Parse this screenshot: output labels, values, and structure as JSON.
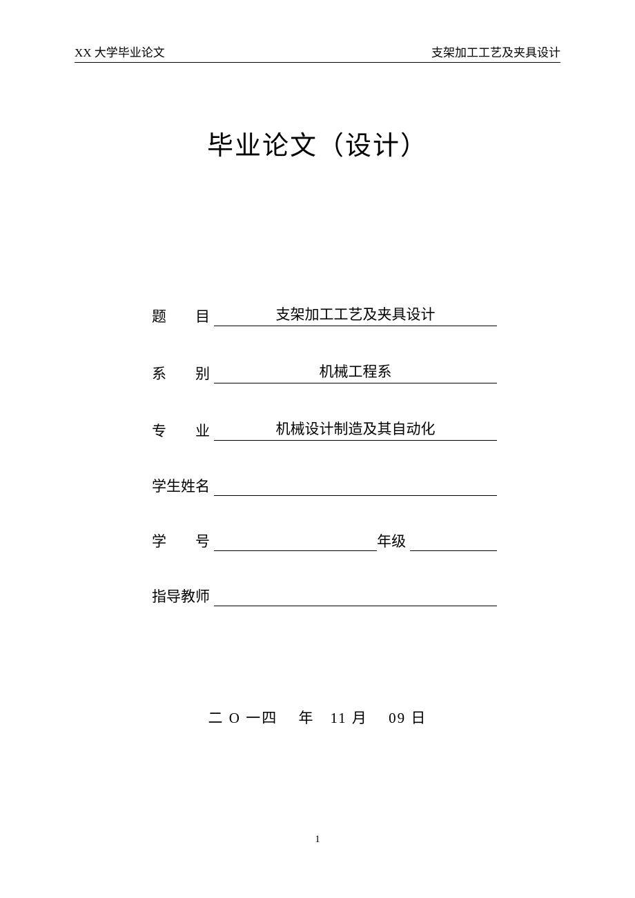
{
  "header": {
    "left": "XX 大学毕业论文",
    "right": "支架加工工艺及夹具设计"
  },
  "title": "毕业论文（设计）",
  "form": {
    "rows": [
      {
        "label": "题　　目",
        "value": "支架加工工艺及夹具设计"
      },
      {
        "label": "系　　别",
        "value": "机械工程系"
      },
      {
        "label": "专　　业",
        "value": "机械设计制造及其自动化"
      },
      {
        "label": "学生姓名",
        "value": ""
      },
      {
        "label": "学　　号",
        "value": "",
        "secondLabel": "年级",
        "secondValue": ""
      },
      {
        "label": "指导教师",
        "value": ""
      }
    ]
  },
  "date": {
    "text": "二 O 一四　 年　11 月　 09 日"
  },
  "pageNumber": "1",
  "styles": {
    "background": "#ffffff",
    "text_color": "#000000",
    "title_fontsize": 38,
    "label_fontsize": 21,
    "header_fontsize": 17
  }
}
